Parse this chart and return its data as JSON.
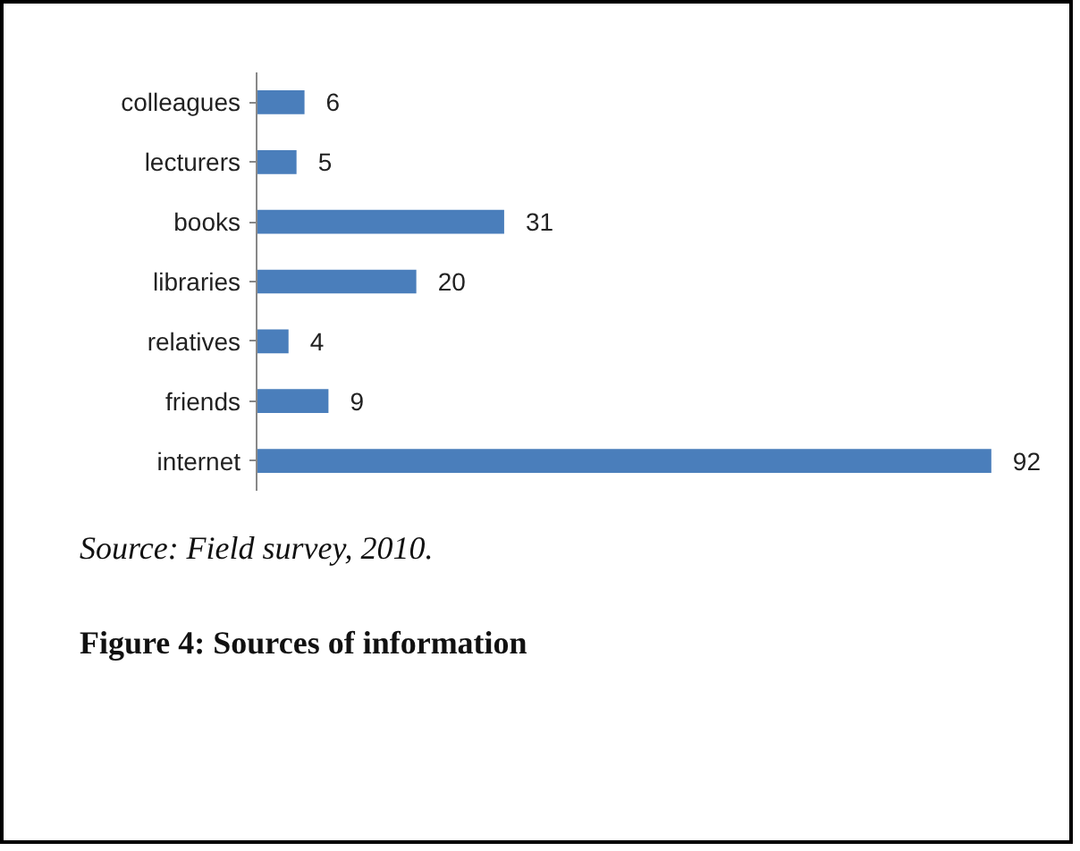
{
  "chart_data": {
    "type": "bar",
    "orientation": "horizontal",
    "categories": [
      "colleagues",
      "lecturers",
      "books",
      "libraries",
      "relatives",
      "friends",
      "internet"
    ],
    "values": [
      6,
      5,
      31,
      20,
      4,
      9,
      92
    ],
    "color": "#4a7ebb",
    "data_labels": true,
    "grid": false,
    "tick_labels": "y",
    "annotations": [
      "Source:     Field survey, 2010.",
      "Figure 4:    Sources of information"
    ]
  }
}
